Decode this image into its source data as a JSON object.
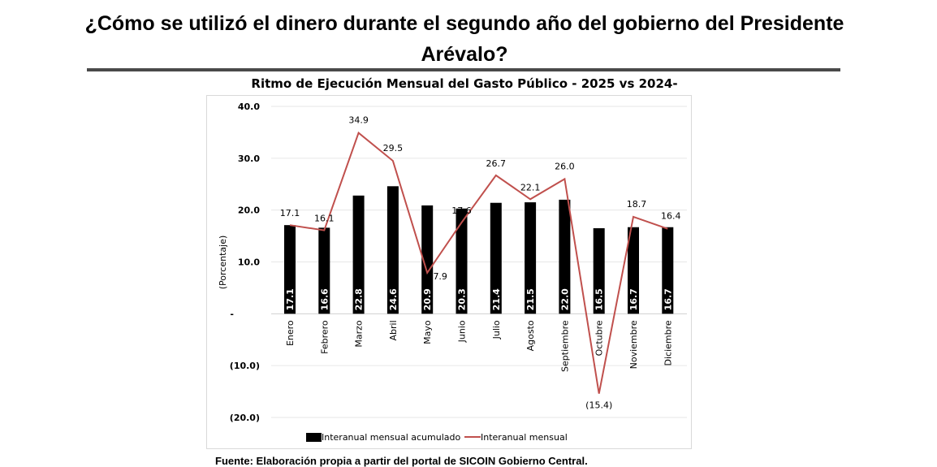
{
  "heading": {
    "line1": "¿Cómo se utilizó el dinero durante el segundo año del gobierno del Presidente",
    "line2": "Arévalo?"
  },
  "source": "Fuente: Elaboración propia a partir del portal de SICOIN Gobierno Central.",
  "chart_data": {
    "type": "bar+line",
    "title": "Ritmo de Ejecución Mensual del Gasto Público - 2025 vs 2024-",
    "ylabel": "(Porcentaje)",
    "xlabel": "",
    "ylim": [
      -20,
      40
    ],
    "yticks": [
      40,
      30,
      20,
      10,
      0,
      -10,
      -20
    ],
    "ytick_labels": [
      "40.0",
      "30.0",
      "20.0",
      "10.0",
      "-",
      "(10.0)",
      "(20.0)"
    ],
    "grid": true,
    "legend": "bottom",
    "categories": [
      "Enero",
      "Febrero",
      "Marzo",
      "Abril",
      "Mayo",
      "Junio",
      "Julio",
      "Agosto",
      "Septiembre",
      "Octubre",
      "Noviembre",
      "Diciembre"
    ],
    "series": [
      {
        "name": "Interanual mensual acumulado",
        "type": "bar",
        "color": "#000000",
        "values": [
          17.1,
          16.6,
          22.8,
          24.6,
          20.9,
          20.3,
          21.4,
          21.5,
          22.0,
          16.5,
          16.7,
          16.7
        ],
        "labels": [
          "17.1",
          "16.6",
          "22.8",
          "24.6",
          "20.9",
          "20.3",
          "21.4",
          "21.5",
          "22.0",
          "16.5",
          "16.7",
          "16.7"
        ]
      },
      {
        "name": "Interanual mensual",
        "type": "line",
        "color": "#c0504d",
        "values": [
          17.1,
          16.1,
          34.9,
          29.5,
          7.9,
          17.6,
          26.7,
          22.1,
          26.0,
          -15.4,
          18.7,
          16.4
        ],
        "labels": [
          "17.1",
          "16.1",
          "34.9",
          "29.5",
          "7.9",
          "17.6",
          "26.7",
          "22.1",
          "26.0",
          "(15.4)",
          "18.7",
          "16.4"
        ]
      }
    ]
  }
}
